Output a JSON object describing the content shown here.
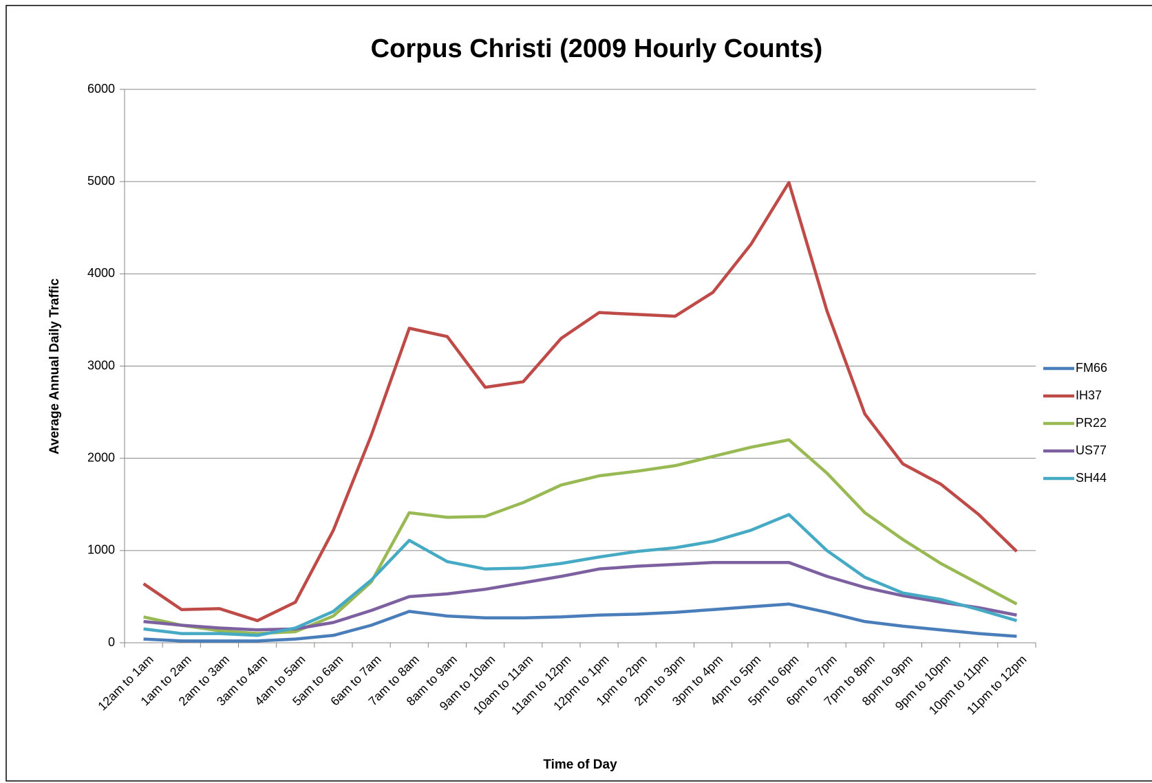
{
  "chart_data": {
    "type": "line",
    "title": "Corpus Christi (2009 Hourly Counts)",
    "x_label": "Time of Day",
    "y_label": "Average Annual Daily Traffic",
    "categories": [
      "12am to 1am",
      "1am to 2am",
      "2am to 3am",
      "3am to 4am",
      "4am to 5am",
      "5am to 6am",
      "6am to 7am",
      "7am to 8am",
      "8am to 9am",
      "9am to 10am",
      "10am to 11am",
      "11am to 12pm",
      "12pm to 1pm",
      "1pm to 2pm",
      "2pm to 3pm",
      "3pm to 4pm",
      "4pm to 5pm",
      "5pm to 6pm",
      "6pm to 7pm",
      "7pm to 8pm",
      "8pm to 9pm",
      "9pm to 10pm",
      "10pm to 11pm",
      "11pm to 12pm"
    ],
    "series": [
      {
        "name": "FM66",
        "color": "#4a7ebb",
        "values": [
          40,
          20,
          20,
          20,
          40,
          80,
          190,
          340,
          290,
          270,
          270,
          280,
          300,
          310,
          330,
          360,
          390,
          420,
          330,
          230,
          180,
          140,
          100,
          70
        ]
      },
      {
        "name": "IH37",
        "color": "#be4b48",
        "values": [
          640,
          360,
          370,
          240,
          440,
          1220,
          2250,
          3410,
          3320,
          2770,
          2830,
          3300,
          3580,
          3560,
          3540,
          3800,
          4320,
          4990,
          3600,
          2480,
          1940,
          1720,
          1390,
          990
        ]
      },
      {
        "name": "PR22",
        "color": "#98b954",
        "values": [
          280,
          190,
          130,
          100,
          120,
          290,
          660,
          1410,
          1360,
          1370,
          1520,
          1710,
          1810,
          1860,
          1920,
          2020,
          2120,
          2200,
          1840,
          1410,
          1120,
          860,
          640,
          420
        ]
      },
      {
        "name": "US77",
        "color": "#7d60a0",
        "values": [
          230,
          190,
          160,
          140,
          150,
          220,
          350,
          500,
          530,
          580,
          650,
          720,
          800,
          830,
          850,
          870,
          870,
          870,
          720,
          600,
          510,
          440,
          380,
          300
        ]
      },
      {
        "name": "SH44",
        "color": "#46aac5",
        "values": [
          150,
          100,
          100,
          80,
          160,
          340,
          680,
          1110,
          880,
          800,
          810,
          860,
          930,
          990,
          1030,
          1100,
          1220,
          1390,
          1000,
          710,
          540,
          470,
          360,
          240
        ]
      }
    ],
    "ylim": [
      0,
      6000
    ],
    "yticks": [
      0,
      1000,
      2000,
      3000,
      4000,
      5000,
      6000
    ],
    "grid": true,
    "legend": "right"
  }
}
